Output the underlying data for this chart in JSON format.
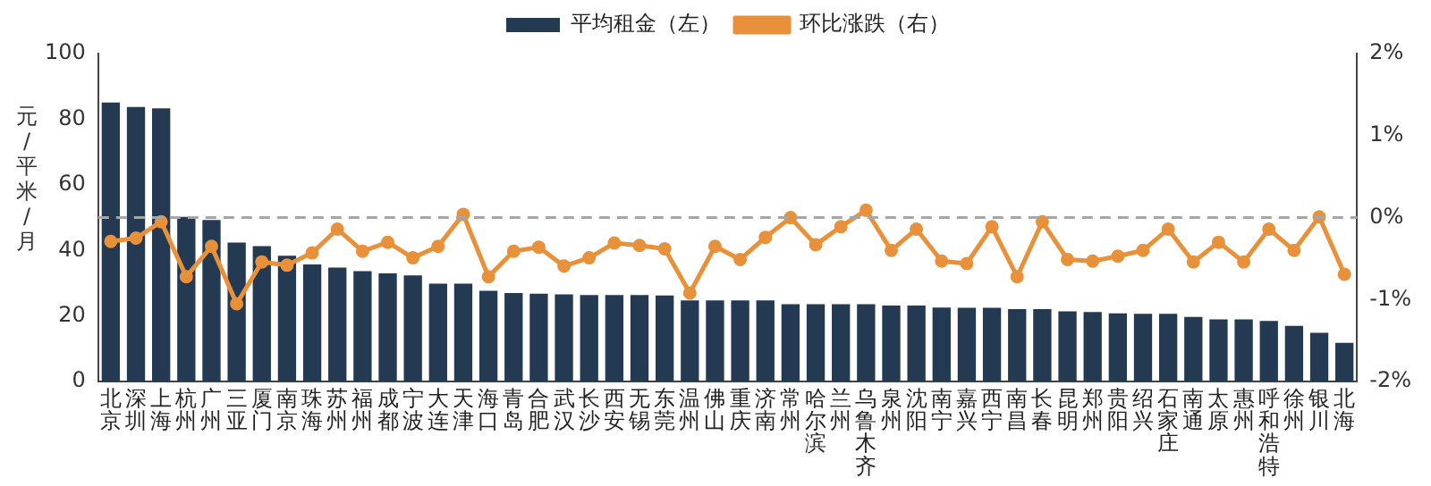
{
  "chart_data": {
    "type": "bar",
    "ylabel": "元/平米/月",
    "legend": "top",
    "marker": "circle",
    "grid": false,
    "categories": [
      "北京",
      "深圳",
      "上海",
      "杭州",
      "广州",
      "三亚",
      "厦门",
      "南京",
      "珠海",
      "苏州",
      "福州",
      "成都",
      "宁波",
      "大连",
      "天津",
      "海口",
      "青岛",
      "合肥",
      "武汉",
      "长沙",
      "西安",
      "无锡",
      "东莞",
      "温州",
      "佛山",
      "重庆",
      "济南",
      "常州",
      "哈尔滨",
      "兰州",
      "乌鲁木齐",
      "泉州",
      "沈阳",
      "南宁",
      "嘉兴",
      "西宁",
      "南昌",
      "长春",
      "昆明",
      "郑州",
      "贵阳",
      "绍兴",
      "石家庄",
      "南通",
      "太原",
      "惠州",
      "呼和浩特",
      "徐州",
      "银川",
      "北海"
    ],
    "series": [
      {
        "name": "平均租金（左）",
        "color": "#243a52",
        "values": [
          85.1,
          83.7,
          83.3,
          50.2,
          49.3,
          42.4,
          41.3,
          38.4,
          35.7,
          34.8,
          33.7,
          33.0,
          32.4,
          29.9,
          29.9,
          27.7,
          27.0,
          26.8,
          26.6,
          26.4,
          26.4,
          26.4,
          26.3,
          24.8,
          24.8,
          24.8,
          24.8,
          23.6,
          23.6,
          23.6,
          23.6,
          23.2,
          23.2,
          22.6,
          22.5,
          22.5,
          22.1,
          22.1,
          21.4,
          21.2,
          20.8,
          20.7,
          20.7,
          19.7,
          19.0,
          19.0,
          18.5,
          17.0,
          14.9,
          11.8
        ]
      },
      {
        "name": "环比涨跌（右）",
        "type": "line",
        "axis": "y2",
        "color": "#e8913a",
        "values": [
          -0.29,
          -0.25,
          -0.05,
          -0.72,
          -0.35,
          -1.05,
          -0.54,
          -0.58,
          -0.43,
          -0.14,
          -0.41,
          -0.3,
          -0.49,
          -0.35,
          0.04,
          -0.72,
          -0.41,
          -0.36,
          -0.59,
          -0.49,
          -0.31,
          -0.34,
          -0.38,
          -0.92,
          -0.35,
          -0.51,
          -0.24,
          0.0,
          -0.33,
          -0.11,
          0.09,
          -0.4,
          -0.14,
          -0.53,
          -0.56,
          -0.11,
          -0.72,
          -0.05,
          -0.51,
          -0.53,
          -0.47,
          -0.4,
          -0.14,
          -0.54,
          -0.3,
          -0.54,
          -0.14,
          -0.4,
          0.01,
          -0.69
        ]
      }
    ],
    "ylim": [
      0,
      100
    ],
    "yticks": [
      0,
      20,
      40,
      60,
      80,
      100
    ],
    "y2lim": [
      -2,
      2
    ],
    "y2ticks": [
      {
        "value": -2,
        "label": "-2%"
      },
      {
        "value": -1,
        "label": "-1%"
      },
      {
        "value": 0,
        "label": "0%"
      },
      {
        "value": 1,
        "label": "1%"
      },
      {
        "value": 2,
        "label": "2%"
      }
    ],
    "ref_lines": [
      {
        "axis": "y2",
        "value": 0,
        "color": "#a6a6a6",
        "line_style": "dashed"
      }
    ]
  }
}
